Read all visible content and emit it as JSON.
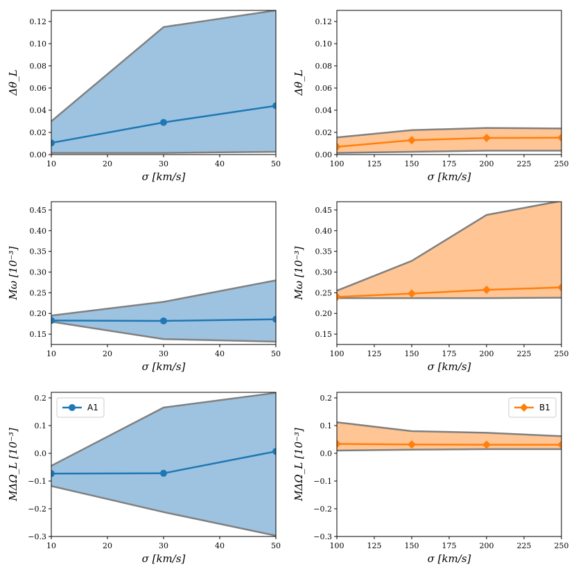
{
  "chart_data": [
    {
      "type": "area",
      "id": "p1",
      "xlabel": "σ [km/s]",
      "ylabel": "Δθ_L",
      "xlim": [
        10,
        50
      ],
      "ylim": [
        0,
        0.13
      ],
      "xticks": [
        10,
        20,
        30,
        40,
        50
      ],
      "xtick_labels": [
        "10",
        "20",
        "30",
        "40",
        "50"
      ],
      "yticks": [
        0,
        0.02,
        0.04,
        0.06,
        0.08,
        0.1,
        0.12
      ],
      "ytick_labels": [
        "0.00",
        "0.02",
        "0.04",
        "0.06",
        "0.08",
        "0.10",
        "0.12"
      ],
      "x": [
        10,
        30,
        50
      ],
      "band_upper": [
        0.03,
        0.115,
        0.13
      ],
      "band_lower": [
        0.0015,
        0.0015,
        0.0025
      ],
      "series": [
        {
          "name": "A1",
          "values": [
            0.0105,
            0.029,
            0.044
          ]
        }
      ],
      "fill_color": "#9dc3e0",
      "line_color": "#1f77b4",
      "marker": "circle"
    },
    {
      "type": "area",
      "id": "p2",
      "xlabel": "σ [km/s]",
      "ylabel": "Δθ_L",
      "xlim": [
        100,
        250
      ],
      "ylim": [
        0,
        0.13
      ],
      "xticks": [
        100,
        125,
        150,
        175,
        200,
        225,
        250
      ],
      "xtick_labels": [
        "100",
        "125",
        "150",
        "175",
        "200",
        "225",
        "250"
      ],
      "yticks": [
        0,
        0.02,
        0.04,
        0.06,
        0.08,
        0.1,
        0.12
      ],
      "ytick_labels": [
        "0.00",
        "0.02",
        "0.04",
        "0.06",
        "0.08",
        "0.10",
        "0.12"
      ],
      "x": [
        100,
        150,
        200,
        250
      ],
      "band_upper": [
        0.0155,
        0.022,
        0.024,
        0.0235
      ],
      "band_lower": [
        0.0015,
        0.0025,
        0.0035,
        0.0035
      ],
      "series": [
        {
          "name": "B1",
          "values": [
            0.007,
            0.013,
            0.015,
            0.0152
          ]
        }
      ],
      "fill_color": "#ffc594",
      "line_color": "#ff7f0e",
      "marker": "diamond"
    },
    {
      "type": "area",
      "id": "p3",
      "xlabel": "σ [km/s]",
      "ylabel": "Mω [10⁻³]",
      "xlim": [
        10,
        50
      ],
      "ylim": [
        0.125,
        0.47
      ],
      "xticks": [
        10,
        20,
        30,
        40,
        50
      ],
      "xtick_labels": [
        "10",
        "20",
        "30",
        "40",
        "50"
      ],
      "yticks": [
        0.15,
        0.2,
        0.25,
        0.3,
        0.35,
        0.4,
        0.45
      ],
      "ytick_labels": [
        "0.15",
        "0.20",
        "0.25",
        "0.30",
        "0.35",
        "0.40",
        "0.45"
      ],
      "x": [
        10,
        30,
        50
      ],
      "band_upper": [
        0.195,
        0.228,
        0.28
      ],
      "band_lower": [
        0.18,
        0.138,
        0.132
      ],
      "series": [
        {
          "name": "A1",
          "values": [
            0.183,
            0.182,
            0.186
          ]
        }
      ],
      "fill_color": "#9dc3e0",
      "line_color": "#1f77b4",
      "marker": "circle"
    },
    {
      "type": "area",
      "id": "p4",
      "xlabel": "σ [km/s]",
      "ylabel": "Mω [10⁻³]",
      "xlim": [
        100,
        250
      ],
      "ylim": [
        0.125,
        0.47
      ],
      "xticks": [
        100,
        125,
        150,
        175,
        200,
        225,
        250
      ],
      "xtick_labels": [
        "100",
        "125",
        "150",
        "175",
        "200",
        "225",
        "250"
      ],
      "yticks": [
        0.15,
        0.2,
        0.25,
        0.3,
        0.35,
        0.4,
        0.45
      ],
      "ytick_labels": [
        "0.15",
        "0.20",
        "0.25",
        "0.30",
        "0.35",
        "0.40",
        "0.45"
      ],
      "x": [
        100,
        150,
        200,
        250
      ],
      "band_upper": [
        0.255,
        0.327,
        0.438,
        0.472
      ],
      "band_lower": [
        0.237,
        0.237,
        0.237,
        0.238
      ],
      "series": [
        {
          "name": "B1",
          "values": [
            0.24,
            0.248,
            0.257,
            0.263
          ]
        }
      ],
      "fill_color": "#ffc594",
      "line_color": "#ff7f0e",
      "marker": "diamond"
    },
    {
      "type": "area",
      "id": "p5",
      "xlabel": "σ [km/s]",
      "ylabel": "MΔΩ_L [10⁻³]",
      "xlim": [
        10,
        50
      ],
      "ylim": [
        -0.3,
        0.22
      ],
      "xticks": [
        10,
        20,
        30,
        40,
        50
      ],
      "xtick_labels": [
        "10",
        "20",
        "30",
        "40",
        "50"
      ],
      "yticks": [
        -0.3,
        -0.2,
        -0.1,
        0.0,
        0.1,
        0.2
      ],
      "ytick_labels": [
        "−0.3",
        "−0.2",
        "−0.1",
        "0.0",
        "0.1",
        "0.2"
      ],
      "x": [
        10,
        30,
        50
      ],
      "band_upper": [
        -0.045,
        0.165,
        0.218
      ],
      "band_lower": [
        -0.118,
        -0.212,
        -0.297
      ],
      "series": [
        {
          "name": "A1",
          "values": [
            -0.073,
            -0.072,
            0.007
          ]
        }
      ],
      "fill_color": "#9dc3e0",
      "line_color": "#1f77b4",
      "marker": "circle",
      "legend": {
        "label": "A1",
        "position": "top-left"
      }
    },
    {
      "type": "area",
      "id": "p6",
      "xlabel": "σ [km/s]",
      "ylabel": "MΔΩ_L [10⁻³]",
      "xlim": [
        100,
        250
      ],
      "ylim": [
        -0.3,
        0.22
      ],
      "xticks": [
        100,
        125,
        150,
        175,
        200,
        225,
        250
      ],
      "xtick_labels": [
        "100",
        "125",
        "150",
        "175",
        "200",
        "225",
        "250"
      ],
      "yticks": [
        -0.3,
        -0.2,
        -0.1,
        0.0,
        0.1,
        0.2
      ],
      "ytick_labels": [
        "−0.3",
        "−0.2",
        "−0.1",
        "0.0",
        "0.1",
        "0.2"
      ],
      "x": [
        100,
        150,
        200,
        250
      ],
      "band_upper": [
        0.112,
        0.08,
        0.074,
        0.062
      ],
      "band_lower": [
        0.01,
        0.013,
        0.015,
        0.015
      ],
      "series": [
        {
          "name": "B1",
          "values": [
            0.034,
            0.032,
            0.031,
            0.031
          ]
        }
      ],
      "fill_color": "#ffc594",
      "line_color": "#ff7f0e",
      "marker": "diamond",
      "legend": {
        "label": "B1",
        "position": "top-right"
      }
    }
  ],
  "colors": {
    "band_edge": "#808080",
    "axis": "#000000"
  }
}
